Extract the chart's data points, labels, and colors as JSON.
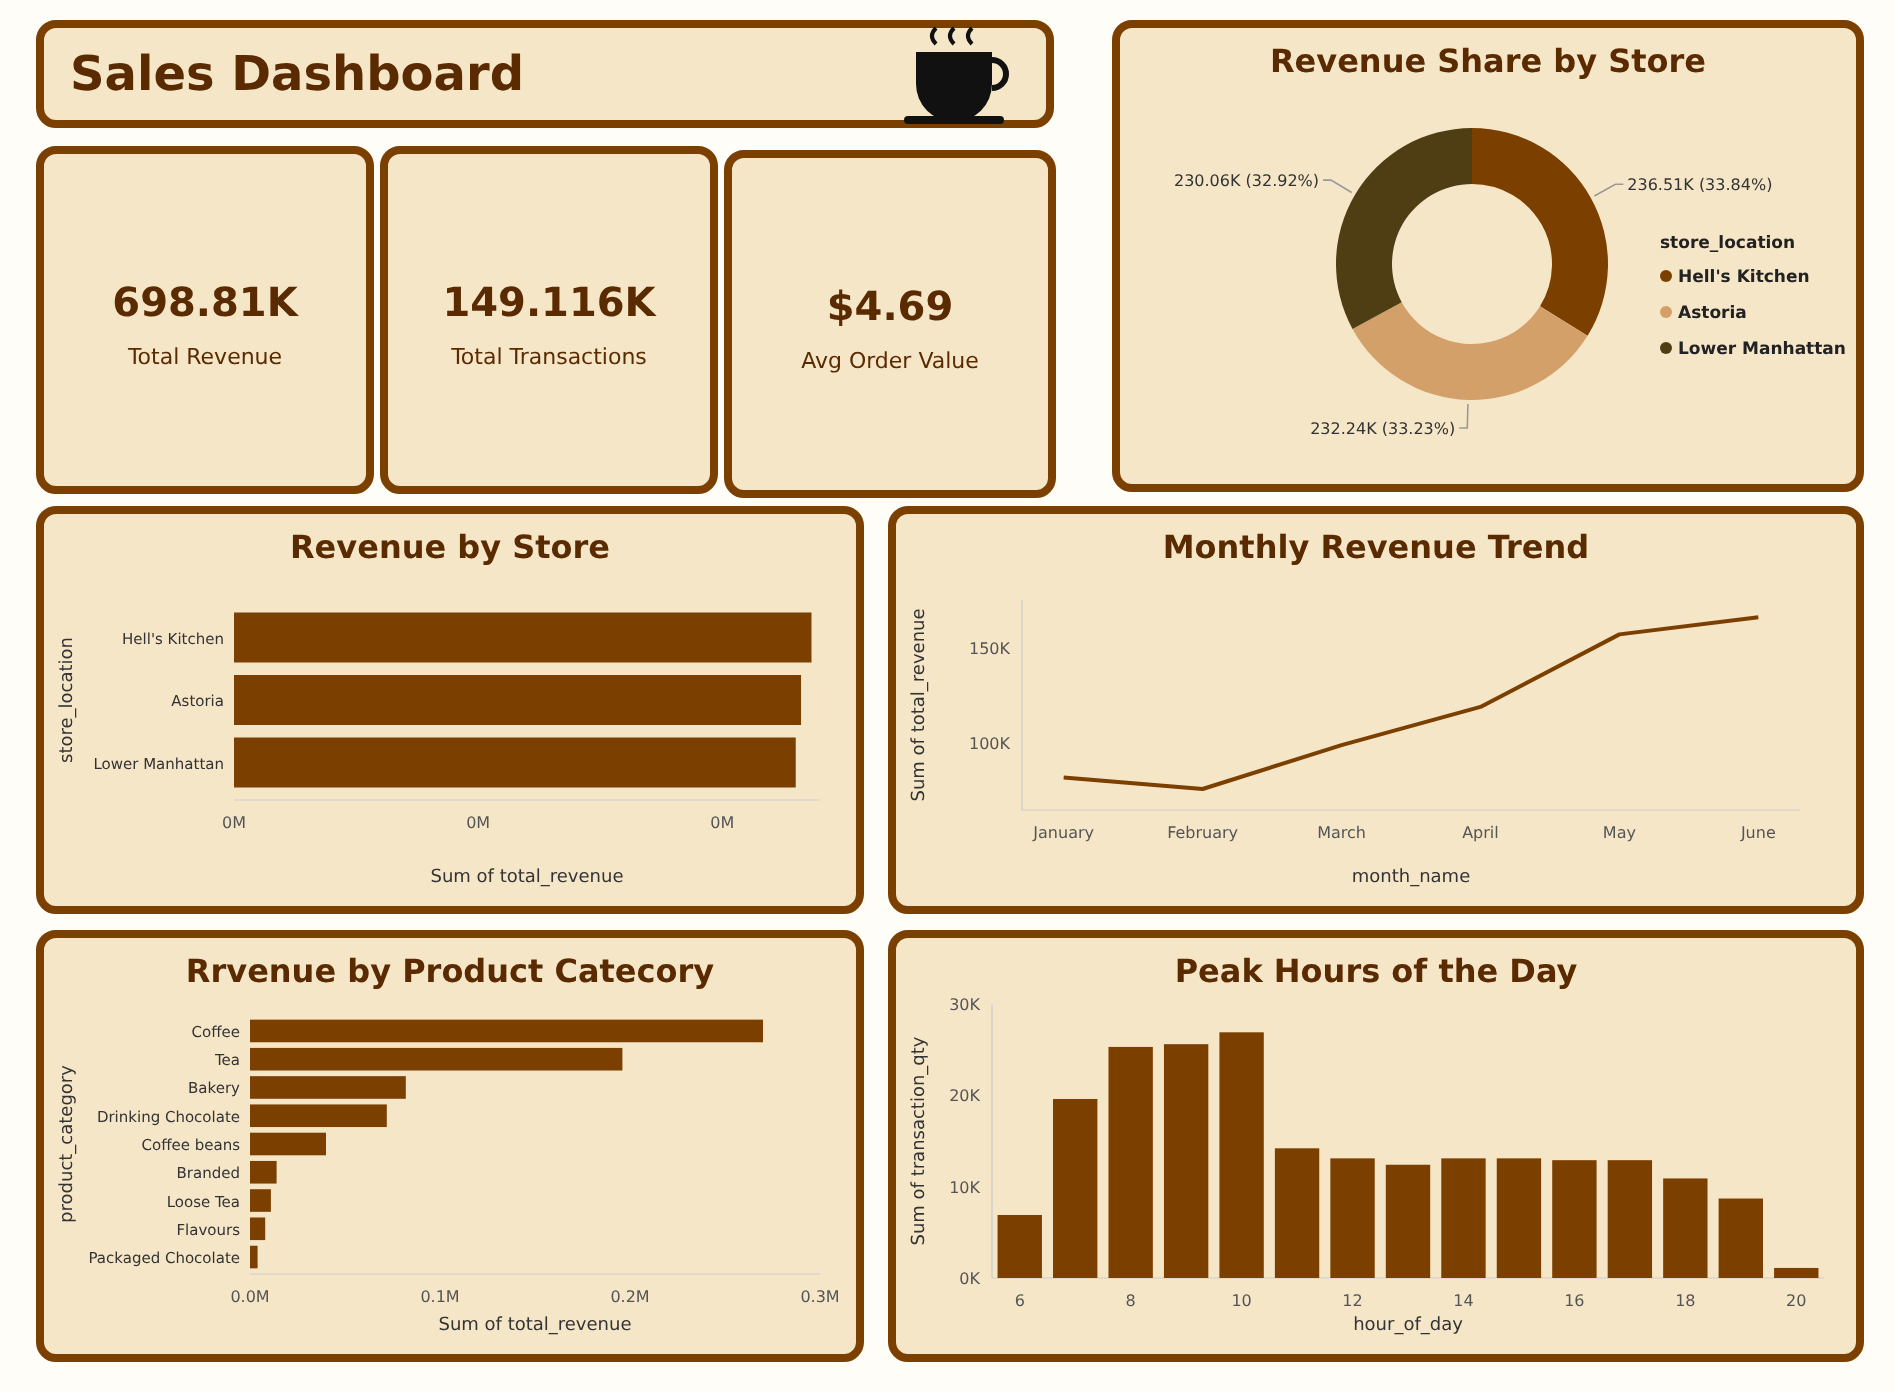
{
  "chart_data": [
    {
      "type": "other",
      "title": "Sales Dashboard"
    },
    {
      "type": "other",
      "annotations": [
        "698.81K",
        "Total Revenue"
      ]
    },
    {
      "type": "other",
      "annotations": [
        "149.116K",
        "Total Transactions"
      ]
    },
    {
      "type": "other",
      "annotations": [
        "$4.69",
        "Avg Order Value"
      ]
    },
    {
      "type": "donut",
      "title": "Revenue Share by Store",
      "categories": [
        "Hell's Kitchen",
        "Astoria",
        "Lower Manhattan"
      ],
      "values": [
        236510,
        232240,
        230060
      ],
      "colors": [
        "#7b3f00",
        "#d4a06a",
        "#4f3d14"
      ],
      "value_labels": [
        "236.51K (33.84%)",
        "232.24K (33.23%)",
        "230.06K (32.92%)"
      ],
      "legend": "right",
      "legend_title": "store_location"
    },
    {
      "type": "bar",
      "orientation": "horizontal",
      "title": "Revenue by Store",
      "categories": [
        "Hell's Kitchen",
        "Astoria",
        "Lower Manhattan"
      ],
      "values": [
        236510,
        232240,
        230060
      ],
      "color": "#7b3f00",
      "xlim": [
        0,
        240000
      ],
      "xticks": [
        {
          "value": 0,
          "label": "0M"
        },
        {
          "value": 100000,
          "label": "0M"
        },
        {
          "value": 200000,
          "label": "0M"
        }
      ],
      "xlabel": "Sum of total_revenue",
      "ylabel": "store_location"
    },
    {
      "type": "line",
      "title": "Monthly Revenue Trend",
      "categories": [
        "January",
        "February",
        "March",
        "April",
        "May",
        "June"
      ],
      "values": [
        82000,
        76000,
        99000,
        119000,
        157000,
        166000
      ],
      "color": "#7b3f00",
      "ylim": [
        65000,
        175000
      ],
      "yticks": [
        {
          "value": 100000,
          "label": "100K"
        },
        {
          "value": 150000,
          "label": "150K"
        }
      ],
      "xlabel": "month_name",
      "ylabel": "Sum of total_revenue",
      "marker": "none"
    },
    {
      "type": "bar",
      "orientation": "horizontal",
      "title": "Rrvenue by Product Catecory",
      "categories": [
        "Coffee",
        "Tea",
        "Bakery",
        "Drinking Chocolate",
        "Coffee beans",
        "Branded",
        "Loose Tea",
        "Flavours",
        "Packaged Chocolate"
      ],
      "values": [
        0.27,
        0.196,
        0.082,
        0.072,
        0.04,
        0.014,
        0.011,
        0.008,
        0.004
      ],
      "color": "#7b3f00",
      "xlim": [
        0,
        0.3
      ],
      "xticks": [
        {
          "value": 0,
          "label": "0.0M"
        },
        {
          "value": 0.1,
          "label": "0.1M"
        },
        {
          "value": 0.2,
          "label": "0.2M"
        },
        {
          "value": 0.3,
          "label": "0.3M"
        }
      ],
      "xlabel": "Sum of total_revenue",
      "ylabel": "product_category"
    },
    {
      "type": "bar",
      "title": "Peak Hours of the Day",
      "x": [
        6,
        7,
        8,
        9,
        10,
        11,
        12,
        13,
        14,
        15,
        16,
        17,
        18,
        19,
        20
      ],
      "values": [
        6900,
        19600,
        25300,
        25600,
        26900,
        14200,
        13100,
        12400,
        13100,
        13100,
        12900,
        12900,
        10900,
        8700,
        1100
      ],
      "color": "#7b3f00",
      "xlim": [
        5.5,
        20.5
      ],
      "xticks": [
        6,
        8,
        10,
        12,
        14,
        16,
        18,
        20
      ],
      "ylim": [
        0,
        30000
      ],
      "yticks": [
        {
          "value": 0,
          "label": "0K"
        },
        {
          "value": 10000,
          "label": "10K"
        },
        {
          "value": 20000,
          "label": "20K"
        },
        {
          "value": 30000,
          "label": "30K"
        }
      ],
      "xlabel": "hour_of_day",
      "ylabel": "Sum of transaction_qty"
    }
  ]
}
